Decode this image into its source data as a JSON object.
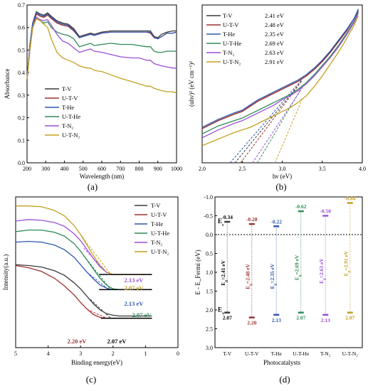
{
  "colors": {
    "T-V": "#3a3a3a",
    "U-T-V": "#9e3030",
    "T-He": "#2f56b0",
    "U-T-He": "#2e8b57",
    "T-N2": "#9b4fd6",
    "U-T-N2": "#c4a020"
  },
  "chart_data": [
    {
      "panel": "(a)",
      "type": "line",
      "xlabel": "Wavelength (nm)",
      "ylabel": "Absorbance",
      "xlim": [
        200,
        1000
      ],
      "ylim": [
        0,
        0.7
      ],
      "xticks": [
        "200",
        "300",
        "400",
        "500",
        "600",
        "700",
        "800",
        "900",
        "1000"
      ],
      "yticks": [
        "0.0",
        "0.1",
        "0.2",
        "0.3",
        "0.4",
        "0.5",
        "0.6",
        "0.7"
      ],
      "legend": "center-right",
      "x": [
        200,
        215,
        230,
        250,
        270,
        290,
        310,
        330,
        360,
        390,
        420,
        450,
        480,
        500,
        520,
        540,
        560,
        600,
        650,
        700,
        760,
        800,
        840,
        860,
        880,
        900,
        920,
        950,
        980,
        1000
      ],
      "series": [
        {
          "name": "T-V",
          "key": "T-V",
          "values": [
            0.37,
            0.52,
            0.62,
            0.67,
            0.66,
            0.655,
            0.665,
            0.65,
            0.63,
            0.62,
            0.615,
            0.595,
            0.56,
            0.565,
            0.57,
            0.575,
            0.57,
            0.58,
            0.585,
            0.585,
            0.585,
            0.585,
            0.585,
            0.585,
            0.56,
            0.555,
            0.57,
            0.58,
            0.585,
            0.585
          ]
        },
        {
          "name": "U-T-V",
          "key": "U-T-V",
          "values": [
            0.37,
            0.5,
            0.6,
            0.66,
            0.65,
            0.645,
            0.655,
            0.64,
            0.62,
            0.61,
            0.605,
            0.585,
            0.555,
            0.56,
            0.565,
            0.57,
            0.565,
            0.575,
            0.58,
            0.58,
            0.58,
            0.58,
            0.58,
            0.575,
            0.555,
            0.55,
            0.56,
            0.575,
            0.575,
            0.58
          ]
        },
        {
          "name": "T-He",
          "key": "T-He",
          "values": [
            0.37,
            0.52,
            0.62,
            0.665,
            0.655,
            0.65,
            0.66,
            0.645,
            0.625,
            0.615,
            0.61,
            0.59,
            0.555,
            0.56,
            0.565,
            0.57,
            0.565,
            0.575,
            0.58,
            0.58,
            0.58,
            0.58,
            0.58,
            0.58,
            0.555,
            0.55,
            0.56,
            0.575,
            0.575,
            0.58
          ]
        },
        {
          "name": "U-T-He",
          "key": "U-T-He",
          "values": [
            0.37,
            0.5,
            0.6,
            0.64,
            0.63,
            0.62,
            0.625,
            0.6,
            0.58,
            0.57,
            0.565,
            0.55,
            0.515,
            0.52,
            0.525,
            0.53,
            0.52,
            0.525,
            0.53,
            0.525,
            0.525,
            0.52,
            0.515,
            0.515,
            0.495,
            0.49,
            0.49,
            0.495,
            0.495,
            0.495
          ]
        },
        {
          "name": "T-N₂",
          "key": "T-N2",
          "values": [
            0.37,
            0.5,
            0.6,
            0.645,
            0.635,
            0.63,
            0.635,
            0.61,
            0.57,
            0.54,
            0.53,
            0.51,
            0.49,
            0.495,
            0.5,
            0.505,
            0.495,
            0.49,
            0.48,
            0.47,
            0.465,
            0.465,
            0.455,
            0.455,
            0.44,
            0.435,
            0.43,
            0.425,
            0.42,
            0.42
          ]
        },
        {
          "name": "U-T-N₂",
          "key": "U-T-N2",
          "values": [
            0.37,
            0.5,
            0.6,
            0.64,
            0.63,
            0.615,
            0.6,
            0.55,
            0.49,
            0.465,
            0.455,
            0.445,
            0.43,
            0.425,
            0.42,
            0.42,
            0.41,
            0.405,
            0.39,
            0.375,
            0.36,
            0.35,
            0.34,
            0.34,
            0.33,
            0.325,
            0.32,
            0.315,
            0.315,
            0.31
          ]
        }
      ]
    },
    {
      "panel": "(b)",
      "type": "line",
      "xlabel": "hν (eV)",
      "ylabel": "(αhν)² (eV cm⁻¹)²",
      "xlim": [
        2.0,
        4.0
      ],
      "xticks": [
        "2.0",
        "2.5",
        "3.0",
        "3.5",
        "4.0"
      ],
      "legend": "top-left",
      "x": [
        2.0,
        2.2,
        2.4,
        2.5,
        2.6,
        2.7,
        2.8,
        2.9,
        3.0,
        3.1,
        3.2,
        3.3,
        3.4,
        3.5,
        3.6,
        3.7,
        3.8,
        3.9,
        3.95
      ],
      "series": [
        {
          "name": "T-V",
          "key": "T-V",
          "gap": "2.41 eV",
          "values": [
            1.3,
            1.6,
            1.85,
            1.95,
            2.15,
            2.35,
            2.5,
            2.65,
            2.8,
            2.95,
            3.1,
            3.3,
            3.55,
            3.85,
            4.2,
            4.6,
            5.0,
            5.5,
            5.8
          ]
        },
        {
          "name": "U-T-V",
          "key": "U-T-V",
          "gap": "2.48 eV",
          "values": [
            1.3,
            1.6,
            1.85,
            1.95,
            2.15,
            2.35,
            2.5,
            2.65,
            2.8,
            2.95,
            3.1,
            3.3,
            3.55,
            3.85,
            4.2,
            4.6,
            5.0,
            5.5,
            5.8
          ]
        },
        {
          "name": "T-He",
          "key": "T-He",
          "gap": "2.35 eV",
          "values": [
            1.35,
            1.65,
            1.9,
            2.0,
            2.2,
            2.4,
            2.55,
            2.7,
            2.85,
            3.0,
            3.15,
            3.35,
            3.6,
            3.9,
            4.25,
            4.65,
            5.05,
            5.5,
            5.85
          ]
        },
        {
          "name": "U-T-He",
          "key": "U-T-He",
          "gap": "2.69 eV",
          "values": [
            1.1,
            1.4,
            1.6,
            1.7,
            1.85,
            2.0,
            2.15,
            2.3,
            2.45,
            2.6,
            2.8,
            3.05,
            3.35,
            3.7,
            4.05,
            4.45,
            4.9,
            5.4,
            5.75
          ]
        },
        {
          "name": "T-N₂",
          "key": "T-N2",
          "gap": "2.63 eV",
          "values": [
            0.95,
            1.25,
            1.5,
            1.6,
            1.75,
            1.9,
            2.05,
            2.2,
            2.4,
            2.55,
            2.75,
            3.0,
            3.3,
            3.65,
            4.0,
            4.4,
            4.85,
            5.35,
            5.7
          ]
        },
        {
          "name": "U-T-N₂",
          "key": "U-T-N2",
          "gap": "2.91 eV",
          "values": [
            0.65,
            0.9,
            1.15,
            1.25,
            1.35,
            1.5,
            1.65,
            1.8,
            1.95,
            2.1,
            2.3,
            2.55,
            2.9,
            3.3,
            3.75,
            4.2,
            4.7,
            5.25,
            5.6
          ]
        }
      ],
      "ylim": [
        0,
        6
      ]
    },
    {
      "panel": "(c)",
      "type": "line",
      "xlabel": "Binding energy(eV)",
      "ylabel": "Intensity(a.u.)",
      "xlim": [
        5,
        0
      ],
      "xticks": [
        "5",
        "4",
        "3",
        "2",
        "1",
        "0"
      ],
      "legend": "top-right",
      "ylim": [
        0,
        10
      ],
      "x": [
        5.0,
        4.6,
        4.2,
        3.8,
        3.5,
        3.2,
        3.0,
        2.8,
        2.6,
        2.4,
        2.2,
        2.0,
        1.8,
        1.5,
        1.0,
        0.8
      ],
      "series": [
        {
          "name": "T-V",
          "key": "T-V",
          "values": [
            5.5,
            5.45,
            5.35,
            5.1,
            4.8,
            4.3,
            3.9,
            3.4,
            2.9,
            2.5,
            2.25,
            2.15,
            2.1,
            2.1,
            2.1,
            2.1
          ]
        },
        {
          "name": "U-T-V",
          "key": "U-T-V",
          "values": [
            5.45,
            5.3,
            5.05,
            4.6,
            4.1,
            3.5,
            3.0,
            2.55,
            2.2,
            2.0,
            1.95,
            1.95,
            1.95,
            1.95,
            1.95,
            1.95
          ]
        },
        {
          "name": "T-He",
          "key": "T-He",
          "values": [
            7.0,
            7.05,
            7.0,
            6.8,
            6.5,
            6.0,
            5.5,
            5.0,
            4.55,
            4.15,
            3.95,
            3.85,
            3.85,
            3.85,
            3.85,
            3.85
          ]
        },
        {
          "name": "U-T-He",
          "key": "U-T-He",
          "values": [
            7.7,
            7.8,
            7.8,
            7.65,
            7.4,
            6.9,
            6.4,
            5.8,
            5.2,
            4.6,
            4.15,
            3.9,
            3.85,
            3.85,
            3.85,
            3.85
          ]
        },
        {
          "name": "T-N₂",
          "key": "T-N2",
          "values": [
            8.4,
            8.5,
            8.45,
            8.3,
            8.05,
            7.55,
            7.1,
            6.5,
            5.9,
            5.35,
            5.0,
            4.85,
            4.85,
            4.85,
            4.85,
            4.85
          ]
        },
        {
          "name": "U-T-N₂",
          "key": "U-T-N2",
          "values": [
            9.4,
            9.4,
            9.35,
            9.1,
            8.75,
            8.1,
            7.5,
            6.8,
            6.1,
            5.45,
            5.0,
            4.85,
            4.85,
            4.85,
            4.85,
            4.85
          ]
        }
      ],
      "annotations": [
        {
          "text": "2.13 eV",
          "key": "T-N2"
        },
        {
          "text": "2.07 eV",
          "key": "U-T-N2"
        },
        {
          "text": "2.13 eV",
          "key": "T-He"
        },
        {
          "text": "2.07 eV",
          "key": "U-T-He"
        },
        {
          "text": "2.20 eV",
          "key": "U-T-V"
        },
        {
          "text": "2.07 eV",
          "key": "T-V"
        }
      ]
    },
    {
      "panel": "(d)",
      "type": "bar",
      "xlabel": "Photocatalysts",
      "ylabel": "E - E_Fermi (eV)",
      "ylim": [
        3.0,
        -1.0
      ],
      "yticks": [
        "-1.0",
        "-0.5",
        "0.0",
        "0.5",
        "1.0",
        "1.5",
        "2.0",
        "2.5",
        "3.0"
      ],
      "categories": [
        "T-V",
        "U-T-V",
        "T-He",
        "U-T-He",
        "T-N₂",
        "U-T-N₂"
      ],
      "keys": [
        "T-V",
        "U-T-V",
        "T-He",
        "U-T-He",
        "T-N2",
        "U-T-N2"
      ],
      "ec": [
        -0.34,
        -0.28,
        -0.22,
        -0.62,
        -0.5,
        -0.84
      ],
      "ev": [
        2.07,
        2.2,
        2.13,
        2.07,
        2.13,
        2.07
      ],
      "ec_labels": [
        "-0.34",
        "-0.28",
        "-0.22",
        "-0.62",
        "-0.50",
        "-0.84"
      ],
      "ev_labels": [
        "2.07",
        "2.20",
        "2.13",
        "2.07",
        "2.13",
        "2.07"
      ],
      "eg_labels": [
        "E_g=2.41 eV",
        "E_g=2.48 eV",
        "E_g=2.35 eV",
        "E_g=2.69 eV",
        "E_g=2.63 eV",
        "E_g=2.91 eV"
      ],
      "ec_symbol": "E_c",
      "ev_symbol": "E_v"
    }
  ],
  "panel_labels": [
    "(a)",
    "(b)",
    "(c)",
    "(d)"
  ]
}
